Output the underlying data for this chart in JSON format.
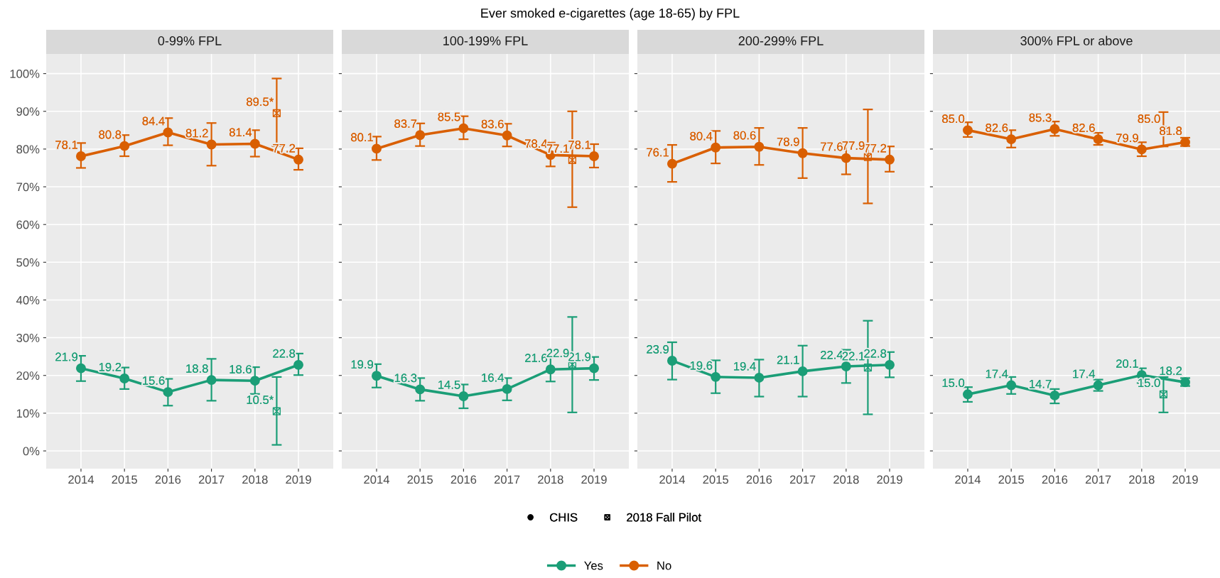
{
  "chart_data": [
    {
      "type": "line",
      "subtitle": "0-99% FPL",
      "xlim": [
        2013.2,
        2019.8
      ],
      "xticks": [
        2014,
        2015,
        2016,
        2017,
        2018,
        2019
      ],
      "ylim": [
        -4.7,
        105.2
      ],
      "yticks": [
        {
          "value": 0,
          "label": "0%"
        },
        {
          "value": 10,
          "label": "10%"
        },
        {
          "value": 20,
          "label": "20%"
        },
        {
          "value": 30,
          "label": "30%"
        },
        {
          "value": 40,
          "label": "40%"
        },
        {
          "value": 50,
          "label": "50%"
        },
        {
          "value": 60,
          "label": "60%"
        },
        {
          "value": 70,
          "label": "70%"
        },
        {
          "value": 80,
          "label": "80%"
        },
        {
          "value": 90,
          "label": "90%"
        },
        {
          "value": 100,
          "label": "100%"
        }
      ],
      "grid": true,
      "marker": "circle",
      "legend": "bottom",
      "annotations": [
        "Ever smoked e-cigarettes (age 18-65) by FPL",
        "CHIS",
        "2018 Fall Pilot"
      ],
      "series": [
        {
          "name": "Yes",
          "color": "#1b9e77",
          "x": [
            2014,
            2015,
            2016,
            2017,
            2018,
            2019
          ],
          "values": [
            21.9,
            19.2,
            15.6,
            18.8,
            18.6,
            22.8
          ],
          "errors": [
            [
              18.5,
              25.2
            ],
            [
              16.4,
              22.1
            ],
            [
              12.0,
              19.1
            ],
            [
              13.3,
              24.4
            ],
            [
              15.1,
              22.2
            ],
            [
              20.1,
              25.8
            ]
          ],
          "value_labels": [
            "21.9",
            "19.2",
            "15.6",
            "18.8",
            "18.6",
            "22.8"
          ]
        },
        {
          "name": "No",
          "color": "#d95f02",
          "x": [
            2014,
            2015,
            2016,
            2017,
            2018,
            2019
          ],
          "values": [
            78.1,
            80.8,
            84.4,
            81.2,
            81.4,
            77.2
          ],
          "errors": [
            [
              75.0,
              81.6
            ],
            [
              78.1,
              83.7
            ],
            [
              81.0,
              88.2
            ],
            [
              75.6,
              86.9
            ],
            [
              78.0,
              85.0
            ],
            [
              74.5,
              80.2
            ]
          ],
          "value_labels": [
            "78.1",
            "80.8",
            "84.4",
            "81.2",
            "81.4",
            "77.2"
          ]
        },
        {
          "type": "scatter",
          "marker": "cross",
          "color": "#1b9e77",
          "x": [
            2018.5
          ],
          "values": [
            10.5
          ],
          "errors": [
            [
              1.6,
              19.6
            ]
          ],
          "value_labels": [
            "10.5*"
          ]
        },
        {
          "type": "scatter",
          "marker": "cross",
          "color": "#d95f02",
          "x": [
            2018.5
          ],
          "values": [
            89.5
          ],
          "errors": [
            [
              80.8,
              98.7
            ]
          ],
          "value_labels": [
            "89.5*"
          ]
        }
      ]
    },
    {
      "type": "line",
      "subtitle": "100-199% FPL",
      "xlim": [
        2013.2,
        2019.8
      ],
      "xticks": [
        2014,
        2015,
        2016,
        2017,
        2018,
        2019
      ],
      "ylim": [
        -4.7,
        105.2
      ],
      "yticks": [
        0,
        10,
        20,
        30,
        40,
        50,
        60,
        70,
        80,
        90,
        100
      ],
      "tick_labels": "x",
      "grid": true,
      "marker": "circle",
      "series": [
        {
          "name": "Yes",
          "color": "#1b9e77",
          "x": [
            2014,
            2015,
            2016,
            2017,
            2018,
            2019
          ],
          "values": [
            19.9,
            16.3,
            14.5,
            16.4,
            21.6,
            21.9
          ],
          "errors": [
            [
              16.8,
              23.0
            ],
            [
              13.3,
              19.3
            ],
            [
              11.3,
              17.6
            ],
            [
              13.4,
              19.3
            ],
            [
              18.4,
              24.7
            ],
            [
              18.8,
              24.9
            ]
          ],
          "value_labels": [
            "19.9",
            "16.3",
            "14.5",
            "16.4",
            "21.6",
            "21.9"
          ]
        },
        {
          "name": "No",
          "color": "#d95f02",
          "x": [
            2014,
            2015,
            2016,
            2017,
            2018,
            2019
          ],
          "values": [
            80.1,
            83.7,
            85.5,
            83.6,
            78.4,
            78.1
          ],
          "errors": [
            [
              77.1,
              83.3
            ],
            [
              80.8,
              86.8
            ],
            [
              82.6,
              88.7
            ],
            [
              80.7,
              86.7
            ],
            [
              75.4,
              81.7
            ],
            [
              75.1,
              81.3
            ]
          ],
          "value_labels": [
            "80.1",
            "83.7",
            "85.5",
            "83.6",
            "78.4",
            "78.1"
          ]
        },
        {
          "type": "scatter",
          "marker": "cross",
          "color": "#1b9e77",
          "x": [
            2018.5
          ],
          "values": [
            22.9
          ],
          "errors": [
            [
              10.2,
              35.5
            ]
          ],
          "value_labels": [
            "22.9"
          ]
        },
        {
          "type": "scatter",
          "marker": "cross",
          "color": "#d95f02",
          "x": [
            2018.5
          ],
          "values": [
            77.1
          ],
          "errors": [
            [
              64.6,
              90.0
            ]
          ],
          "value_labels": [
            "77.1"
          ]
        }
      ]
    },
    {
      "type": "line",
      "subtitle": "200-299% FPL",
      "xlim": [
        2013.2,
        2019.8
      ],
      "xticks": [
        2014,
        2015,
        2016,
        2017,
        2018,
        2019
      ],
      "ylim": [
        -4.7,
        105.2
      ],
      "yticks": [
        0,
        10,
        20,
        30,
        40,
        50,
        60,
        70,
        80,
        90,
        100
      ],
      "tick_labels": "x",
      "grid": true,
      "marker": "circle",
      "series": [
        {
          "name": "Yes",
          "color": "#1b9e77",
          "x": [
            2014,
            2015,
            2016,
            2017,
            2018,
            2019
          ],
          "values": [
            23.9,
            19.6,
            19.4,
            21.1,
            22.4,
            22.8
          ],
          "errors": [
            [
              18.9,
              28.8
            ],
            [
              15.3,
              24.0
            ],
            [
              14.4,
              24.2
            ],
            [
              14.4,
              27.9
            ],
            [
              18.0,
              26.8
            ],
            [
              19.5,
              26.2
            ]
          ],
          "value_labels": [
            "23.9",
            "19.6",
            "19.4",
            "21.1",
            "22.4",
            "22.8"
          ]
        },
        {
          "name": "No",
          "color": "#d95f02",
          "x": [
            2014,
            2015,
            2016,
            2017,
            2018,
            2019
          ],
          "values": [
            76.1,
            80.4,
            80.6,
            78.9,
            77.6,
            77.2
          ],
          "errors": [
            [
              71.3,
              81.1
            ],
            [
              76.2,
              84.8
            ],
            [
              75.8,
              85.6
            ],
            [
              72.3,
              85.6
            ],
            [
              73.3,
              82.1
            ],
            [
              74.0,
              80.7
            ]
          ],
          "value_labels": [
            "76.1",
            "80.4",
            "80.6",
            "78.9",
            "77.6",
            "77.2"
          ]
        },
        {
          "type": "scatter",
          "marker": "cross",
          "color": "#1b9e77",
          "x": [
            2018.5
          ],
          "values": [
            22.1
          ],
          "errors": [
            [
              9.7,
              34.5
            ]
          ],
          "value_labels": [
            "22.1"
          ]
        },
        {
          "type": "scatter",
          "marker": "cross",
          "color": "#d95f02",
          "x": [
            2018.5
          ],
          "values": [
            77.9
          ],
          "errors": [
            [
              65.6,
              90.5
            ]
          ],
          "value_labels": [
            "77.9"
          ]
        }
      ]
    },
    {
      "type": "line",
      "subtitle": "300% FPL or above",
      "xlim": [
        2013.2,
        2019.8
      ],
      "xticks": [
        2014,
        2015,
        2016,
        2017,
        2018,
        2019
      ],
      "ylim": [
        -4.7,
        105.2
      ],
      "yticks": [
        0,
        10,
        20,
        30,
        40,
        50,
        60,
        70,
        80,
        90,
        100
      ],
      "tick_labels": "x",
      "grid": true,
      "marker": "circle",
      "series": [
        {
          "name": "Yes",
          "color": "#1b9e77",
          "x": [
            2014,
            2015,
            2016,
            2017,
            2018,
            2019
          ],
          "values": [
            15.0,
            17.4,
            14.7,
            17.4,
            20.1,
            18.2
          ],
          "errors": [
            [
              13.0,
              16.9
            ],
            [
              15.1,
              19.6
            ],
            [
              12.6,
              16.4
            ],
            [
              15.9,
              18.9
            ],
            [
              18.0,
              21.9
            ],
            [
              17.2,
              19.3
            ]
          ],
          "value_labels": [
            "15.0",
            "17.4",
            "14.7",
            "17.4",
            "20.1",
            "18.2"
          ]
        },
        {
          "name": "No",
          "color": "#d95f02",
          "x": [
            2014,
            2015,
            2016,
            2017,
            2018,
            2019
          ],
          "values": [
            85.0,
            82.6,
            85.3,
            82.6,
            79.9,
            81.8
          ],
          "errors": [
            [
              83.2,
              87.1
            ],
            [
              80.4,
              85.0
            ],
            [
              83.5,
              87.3
            ],
            [
              81.1,
              84.3
            ],
            [
              78.1,
              81.8
            ],
            [
              80.8,
              83.0
            ]
          ],
          "value_labels": [
            "85.0",
            "82.6",
            "85.3",
            "82.6",
            "79.9",
            "81.8"
          ]
        },
        {
          "type": "scatter",
          "marker": "cross",
          "color": "#1b9e77",
          "x": [
            2018.5
          ],
          "values": [
            15.0
          ],
          "errors": [
            [
              10.2,
              19.6
            ]
          ],
          "value_labels": [
            "15.0"
          ]
        },
        {
          "type": "scatter",
          "marker": "cross",
          "color": "#d95f02",
          "x": [
            2018.5
          ],
          "values": [
            85.0
          ],
          "errors": [
            [
              80.7,
              89.8
            ]
          ],
          "value_labels": [
            "85.0"
          ]
        }
      ]
    }
  ]
}
